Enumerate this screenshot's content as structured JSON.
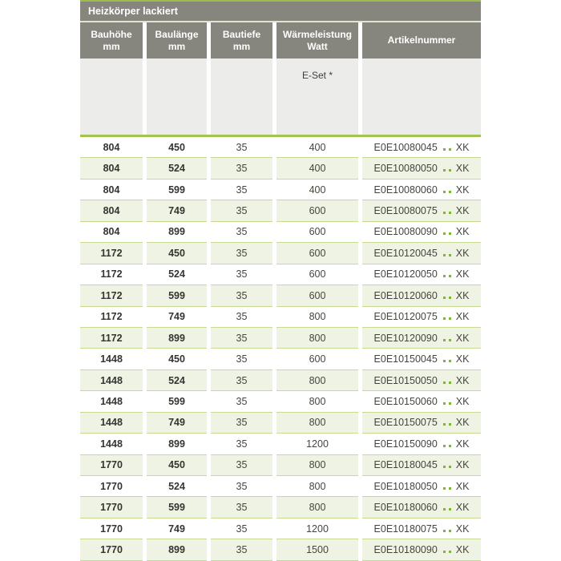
{
  "table": {
    "title": "Heizkörper lackiert",
    "columns": [
      {
        "line1": "Bauhöhe",
        "line2": "mm"
      },
      {
        "line1": "Baulänge",
        "line2": "mm"
      },
      {
        "line1": "Bautiefe",
        "line2": "mm"
      },
      {
        "line1": "Wärmeleistung",
        "line2": "Watt"
      },
      {
        "line1": "Artikelnummer",
        "line2": ""
      }
    ],
    "subheader": {
      "eset_label": "E-Set *"
    },
    "rows": [
      {
        "bauhoehe": "804",
        "baulaenge": "450",
        "bautiefe": "35",
        "watt": "400",
        "artikel_code": "E0E10080045",
        "artikel_suffix": "XK"
      },
      {
        "bauhoehe": "804",
        "baulaenge": "524",
        "bautiefe": "35",
        "watt": "400",
        "artikel_code": "E0E10080050",
        "artikel_suffix": "XK"
      },
      {
        "bauhoehe": "804",
        "baulaenge": "599",
        "bautiefe": "35",
        "watt": "400",
        "artikel_code": "E0E10080060",
        "artikel_suffix": "XK"
      },
      {
        "bauhoehe": "804",
        "baulaenge": "749",
        "bautiefe": "35",
        "watt": "600",
        "artikel_code": "E0E10080075",
        "artikel_suffix": "XK"
      },
      {
        "bauhoehe": "804",
        "baulaenge": "899",
        "bautiefe": "35",
        "watt": "600",
        "artikel_code": "E0E10080090",
        "artikel_suffix": "XK"
      },
      {
        "bauhoehe": "1172",
        "baulaenge": "450",
        "bautiefe": "35",
        "watt": "600",
        "artikel_code": "E0E10120045",
        "artikel_suffix": "XK"
      },
      {
        "bauhoehe": "1172",
        "baulaenge": "524",
        "bautiefe": "35",
        "watt": "600",
        "artikel_code": "E0E10120050",
        "artikel_suffix": "XK"
      },
      {
        "bauhoehe": "1172",
        "baulaenge": "599",
        "bautiefe": "35",
        "watt": "600",
        "artikel_code": "E0E10120060",
        "artikel_suffix": "XK"
      },
      {
        "bauhoehe": "1172",
        "baulaenge": "749",
        "bautiefe": "35",
        "watt": "800",
        "artikel_code": "E0E10120075",
        "artikel_suffix": "XK"
      },
      {
        "bauhoehe": "1172",
        "baulaenge": "899",
        "bautiefe": "35",
        "watt": "800",
        "artikel_code": "E0E10120090",
        "artikel_suffix": "XK"
      },
      {
        "bauhoehe": "1448",
        "baulaenge": "450",
        "bautiefe": "35",
        "watt": "600",
        "artikel_code": "E0E10150045",
        "artikel_suffix": "XK"
      },
      {
        "bauhoehe": "1448",
        "baulaenge": "524",
        "bautiefe": "35",
        "watt": "800",
        "artikel_code": "E0E10150050",
        "artikel_suffix": "XK"
      },
      {
        "bauhoehe": "1448",
        "baulaenge": "599",
        "bautiefe": "35",
        "watt": "800",
        "artikel_code": "E0E10150060",
        "artikel_suffix": "XK"
      },
      {
        "bauhoehe": "1448",
        "baulaenge": "749",
        "bautiefe": "35",
        "watt": "800",
        "artikel_code": "E0E10150075",
        "artikel_suffix": "XK"
      },
      {
        "bauhoehe": "1448",
        "baulaenge": "899",
        "bautiefe": "35",
        "watt": "1200",
        "artikel_code": "E0E10150090",
        "artikel_suffix": "XK"
      },
      {
        "bauhoehe": "1770",
        "baulaenge": "450",
        "bautiefe": "35",
        "watt": "800",
        "artikel_code": "E0E10180045",
        "artikel_suffix": "XK"
      },
      {
        "bauhoehe": "1770",
        "baulaenge": "524",
        "bautiefe": "35",
        "watt": "800",
        "artikel_code": "E0E10180050",
        "artikel_suffix": "XK"
      },
      {
        "bauhoehe": "1770",
        "baulaenge": "599",
        "bautiefe": "35",
        "watt": "800",
        "artikel_code": "E0E10180060",
        "artikel_suffix": "XK"
      },
      {
        "bauhoehe": "1770",
        "baulaenge": "749",
        "bautiefe": "35",
        "watt": "1200",
        "artikel_code": "E0E10180075",
        "artikel_suffix": "XK"
      },
      {
        "bauhoehe": "1770",
        "baulaenge": "899",
        "bautiefe": "35",
        "watt": "1500",
        "artikel_code": "E0E10180090",
        "artikel_suffix": "XK"
      }
    ],
    "colors": {
      "accent_green": "#9cbc4d",
      "thick_line_green": "#a2c353",
      "row_separator_green": "#c7da93",
      "dot_green": "#7fb43b",
      "header_gray": "#87867e",
      "subheader_gray": "#ececeb",
      "alt_row_green": "#eff3e3",
      "text_dark": "#343431"
    }
  }
}
